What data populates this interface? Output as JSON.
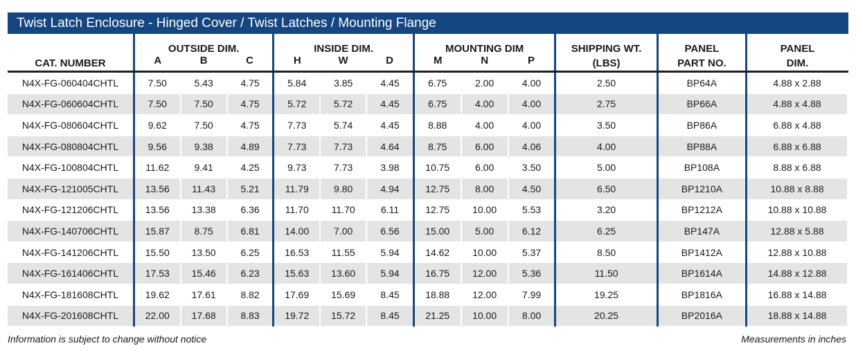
{
  "title": "Twist Latch Enclosure -  Hinged Cover / Twist Latches / Mounting Flange",
  "headers": {
    "cat_number": "CAT. NUMBER",
    "outside_dim": "OUTSIDE DIM.",
    "inside_dim": "INSIDE DIM.",
    "mounting_dim": "MOUNTING DIM",
    "shipping_wt_line1": "SHIPPING WT.",
    "shipping_wt_line2": "(LBS)",
    "panel_part_line1": "PANEL",
    "panel_part_line2": "PART NO.",
    "panel_dim_line1": "PANEL",
    "panel_dim_line2": "DIM.",
    "sub": [
      "A",
      "B",
      "C",
      "H",
      "W",
      "D",
      "M",
      "N",
      "P"
    ]
  },
  "rows": [
    [
      "N4X-FG-060404CHTL",
      "7.50",
      "5.43",
      "4.75",
      "5.84",
      "3.85",
      "4.45",
      "6.75",
      "2.00",
      "4.00",
      "2.50",
      "BP64A",
      "4.88 x 2.88"
    ],
    [
      "N4X-FG-060604CHTL",
      "7.50",
      "7.50",
      "4.75",
      "5.72",
      "5.72",
      "4.45",
      "6.75",
      "4.00",
      "4.00",
      "2.75",
      "BP66A",
      "4.88 x 4.88"
    ],
    [
      "N4X-FG-080604CHTL",
      "9.62",
      "7.50",
      "4.75",
      "7.73",
      "5.74",
      "4.45",
      "8.88",
      "4.00",
      "4.00",
      "3.50",
      "BP86A",
      "6.88 x 4.88"
    ],
    [
      "N4X-FG-080804CHTL",
      "9.56",
      "9.38",
      "4.89",
      "7.73",
      "7.73",
      "4.64",
      "8.75",
      "6.00",
      "4.06",
      "4.00",
      "BP88A",
      "6.88 x 6.88"
    ],
    [
      "N4X-FG-100804CHTL",
      "11.62",
      "9.41",
      "4.25",
      "9.73",
      "7.73",
      "3.98",
      "10.75",
      "6.00",
      "3.50",
      "5.00",
      "BP108A",
      "8.88 x 6.88"
    ],
    [
      "N4X-FG-121005CHTL",
      "13.56",
      "11.43",
      "5.21",
      "11.79",
      "9.80",
      "4.94",
      "12.75",
      "8.00",
      "4.50",
      "6.50",
      "BP1210A",
      "10.88 x 8.88"
    ],
    [
      "N4X-FG-121206CHTL",
      "13.56",
      "13.38",
      "6.36",
      "11.70",
      "11.70",
      "6.11",
      "12.75",
      "10.00",
      "5.53",
      "3.20",
      "BP1212A",
      "10.88 x 10.88"
    ],
    [
      "N4X-FG-140706CHTL",
      "15.87",
      "8.75",
      "6.81",
      "14.00",
      "7.00",
      "6.56",
      "15.00",
      "5.00",
      "6.12",
      "6.25",
      "BP147A",
      "12.88 x 5.88"
    ],
    [
      "N4X-FG-141206CHTL",
      "15.50",
      "13.50",
      "6.25",
      "16.53",
      "11.55",
      "5.94",
      "14.62",
      "10.00",
      "5.37",
      "8.50",
      "BP1412A",
      "12.88 x 10.88"
    ],
    [
      "N4X-FG-161406CHTL",
      "17.53",
      "15.46",
      "6.23",
      "15.63",
      "13.60",
      "5.94",
      "16.75",
      "12.00",
      "5.36",
      "11.50",
      "BP1614A",
      "14.88 x 12.88"
    ],
    [
      "N4X-FG-181608CHTL",
      "19.62",
      "17.61",
      "8.82",
      "17.69",
      "15.69",
      "8.45",
      "18.88",
      "12.00",
      "7.99",
      "19.25",
      "BP1816A",
      "16.88 x 14.88"
    ],
    [
      "N4X-FG-201608CHTL",
      "22.00",
      "17.68",
      "8.83",
      "19.72",
      "15.72",
      "8.45",
      "21.25",
      "10.00",
      "8.00",
      "20.25",
      "BP2016A",
      "18.88 x 14.88"
    ]
  ],
  "footer": {
    "left": "Information is subject to change without notice",
    "right": "Measurements in inches"
  },
  "colors": {
    "accent": "#16467f",
    "stripe": "#e4e4e4"
  }
}
